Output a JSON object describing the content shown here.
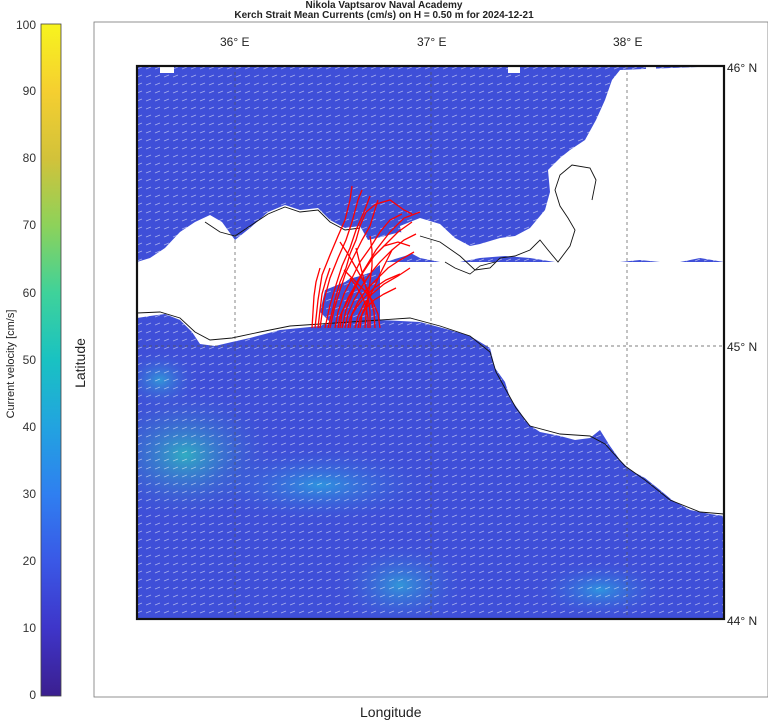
{
  "figure": {
    "title_line1": "Nikola Vaptsarov Naval Academy",
    "title_line2": "Kerch Strait Mean Currents (cm/s) on H = 0.50 m for 2024-12-21",
    "xlabel": "Longitude",
    "ylabel": "Latitude"
  },
  "colorbar": {
    "label": "Current velocity [cm/s]",
    "range": [
      0,
      100
    ],
    "ticks": [
      "0",
      "10",
      "20",
      "30",
      "40",
      "50",
      "60",
      "70",
      "80",
      "90",
      "100"
    ],
    "colors": [
      "#3b1f8f",
      "#3e35c9",
      "#3a58e6",
      "#2f7ff0",
      "#22a3e0",
      "#19c2c2",
      "#3fd29a",
      "#8dd25a",
      "#d2c23a",
      "#f5cf30",
      "#f7f41e"
    ]
  },
  "map": {
    "lon_ticks": [
      "36° E",
      "37° E",
      "38° E"
    ],
    "lat_ticks": [
      "46° N",
      "45° N",
      "44° N"
    ],
    "lon_range": [
      35.5,
      38.5
    ],
    "lat_range": [
      44.0,
      46.0
    ],
    "water_color": "#3f4fd8",
    "land_color": "#ffffff",
    "trajectory_color": "#ff0000"
  }
}
